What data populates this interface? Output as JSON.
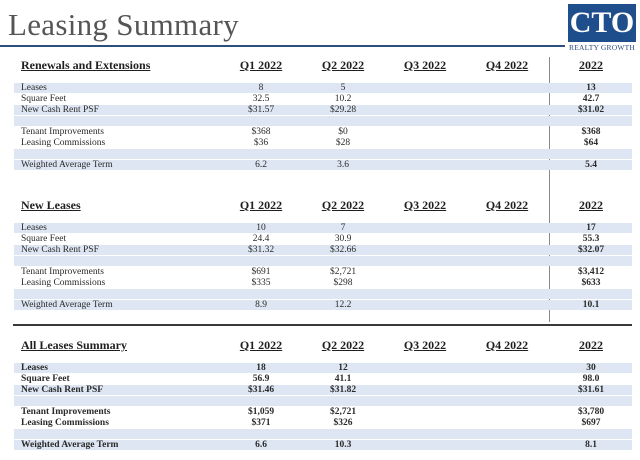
{
  "title": "Leasing Summary",
  "logo": {
    "text": "CTO",
    "subtitle": "REALTY GROWTH"
  },
  "columns": [
    "Q1 2022",
    "Q2 2022",
    "Q3 2022",
    "Q4 2022",
    "2022"
  ],
  "sections": [
    {
      "heading": "Renewals and Extensions",
      "rows": [
        {
          "label": "Leases",
          "values": [
            "8",
            "5",
            "",
            "",
            "13"
          ]
        },
        {
          "label": "Square Feet",
          "values": [
            "32.5",
            "10.2",
            "",
            "",
            "42.7"
          ]
        },
        {
          "label": "New Cash Rent PSF",
          "values": [
            "$31.57",
            "$29.28",
            "",
            "",
            "$31.02"
          ]
        },
        {
          "label": "Tenant Improvements",
          "values": [
            "$368",
            "$0",
            "",
            "",
            "$368"
          ]
        },
        {
          "label": "Leasing Commissions",
          "values": [
            "$36",
            "$28",
            "",
            "",
            "$64"
          ]
        },
        {
          "label": "Weighted Average Term",
          "values": [
            "6.2",
            "3.6",
            "",
            "",
            "5.4"
          ]
        }
      ]
    },
    {
      "heading": "New Leases",
      "rows": [
        {
          "label": "Leases",
          "values": [
            "10",
            "7",
            "",
            "",
            "17"
          ]
        },
        {
          "label": "Square Feet",
          "values": [
            "24.4",
            "30.9",
            "",
            "",
            "55.3"
          ]
        },
        {
          "label": "New Cash Rent PSF",
          "values": [
            "$31.32",
            "$32.66",
            "",
            "",
            "$32.07"
          ]
        },
        {
          "label": "Tenant Improvements",
          "values": [
            "$691",
            "$2,721",
            "",
            "",
            "$3,412"
          ]
        },
        {
          "label": "Leasing Commissions",
          "values": [
            "$335",
            "$298",
            "",
            "",
            "$633"
          ]
        },
        {
          "label": "Weighted Average Term",
          "values": [
            "8.9",
            "12.2",
            "",
            "",
            "10.1"
          ]
        }
      ]
    },
    {
      "heading": "All Leases Summary",
      "rows": [
        {
          "label": "Leases",
          "values": [
            "18",
            "12",
            "",
            "",
            "30"
          ]
        },
        {
          "label": "Square Feet",
          "values": [
            "56.9",
            "41.1",
            "",
            "",
            "98.0"
          ]
        },
        {
          "label": "New Cash Rent PSF",
          "values": [
            "$31.46",
            "$31.82",
            "",
            "",
            "$31.61"
          ]
        },
        {
          "label": "Tenant Improvements",
          "values": [
            "$1,059",
            "$2,721",
            "",
            "",
            "$3,780"
          ]
        },
        {
          "label": "Leasing Commissions",
          "values": [
            "$371",
            "$326",
            "",
            "",
            "$697"
          ]
        },
        {
          "label": "Weighted Average Term",
          "values": [
            "6.6",
            "10.3",
            "",
            "",
            "8.1"
          ]
        }
      ]
    }
  ]
}
